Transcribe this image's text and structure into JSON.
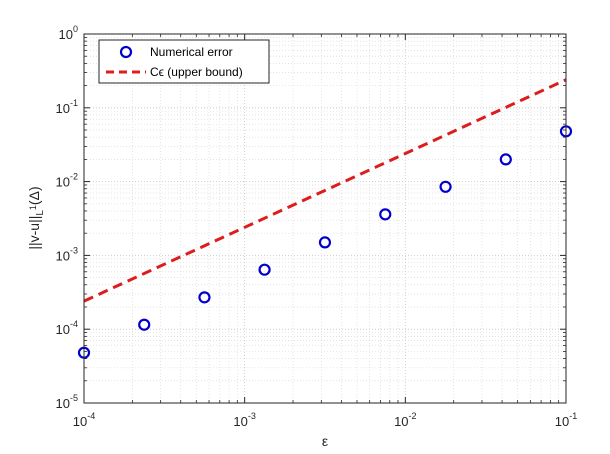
{
  "chart_data": {
    "type": "scatter",
    "x_scale": "log",
    "y_scale": "log",
    "xlim": [
      0.0001,
      0.1
    ],
    "ylim": [
      1e-05,
      1
    ],
    "grid": true,
    "minor_grid": true,
    "legend_position": "top-left",
    "xlabel": "ε",
    "ylabel": "||v-u||L1(Δ)",
    "x_ticks": [
      {
        "base": "10",
        "exp": "-4",
        "value": 0.0001
      },
      {
        "base": "10",
        "exp": "-3",
        "value": 0.001
      },
      {
        "base": "10",
        "exp": "-2",
        "value": 0.01
      },
      {
        "base": "10",
        "exp": "-1",
        "value": 0.1
      }
    ],
    "y_ticks": [
      {
        "base": "10",
        "exp": "-5",
        "value": 1e-05
      },
      {
        "base": "10",
        "exp": "-4",
        "value": 0.0001
      },
      {
        "base": "10",
        "exp": "-3",
        "value": 0.001
      },
      {
        "base": "10",
        "exp": "-2",
        "value": 0.01
      },
      {
        "base": "10",
        "exp": "-1",
        "value": 0.1
      },
      {
        "base": "10",
        "exp": "0",
        "value": 1
      }
    ],
    "series": [
      {
        "name": "Numerical error",
        "style": "markers",
        "marker": "circle",
        "color": "#0000cc",
        "x": [
          0.0001,
          0.000237,
          0.000562,
          0.00133,
          0.00316,
          0.0075,
          0.0178,
          0.0422,
          0.1
        ],
        "y": [
          4.8e-05,
          0.000115,
          0.00027,
          0.00064,
          0.0015,
          0.0036,
          0.0085,
          0.02,
          0.048
        ]
      },
      {
        "name": "Cϵ (upper bound)",
        "style": "dashed-line",
        "color": "#dd1c1c",
        "x": [
          0.0001,
          0.1
        ],
        "y": [
          0.00024,
          0.24
        ]
      }
    ]
  }
}
